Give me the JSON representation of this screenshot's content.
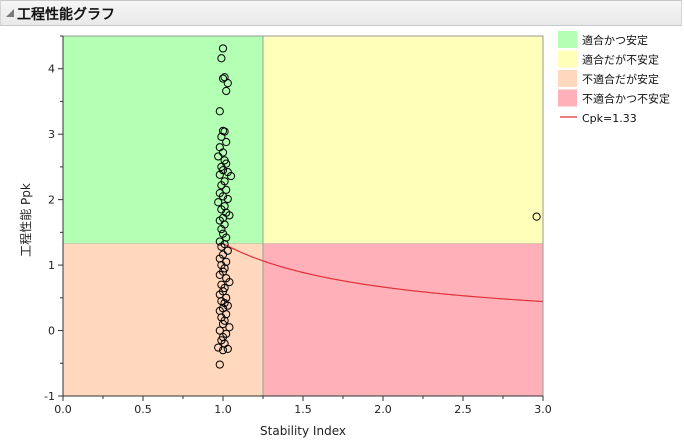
{
  "outline": {
    "title": "工程性能グラフ"
  },
  "chart_data": {
    "type": "scatter",
    "title": "工程性能グラフ",
    "xlabel": "Stability Index",
    "ylabel": "工程性能 Ppk",
    "xlim": [
      0,
      3.0
    ],
    "ylim": [
      -1,
      4.5
    ],
    "x_ticks": [
      "0.0",
      "0.5",
      "1.0",
      "1.5",
      "2.0",
      "2.5",
      "3.0"
    ],
    "y_ticks": [
      "-1",
      "0",
      "1",
      "2",
      "3",
      "4"
    ],
    "regions": [
      {
        "label": "適合かつ安定",
        "color": "#b3ffb3",
        "x": [
          0,
          1.25
        ],
        "y": [
          1.33,
          4.5
        ]
      },
      {
        "label": "適合だが不安定",
        "color": "#ffffb9",
        "x": [
          1.25,
          3.0
        ],
        "y": [
          1.33,
          4.5
        ]
      },
      {
        "label": "不適合だが安定",
        "color": "#ffd8bd",
        "x": [
          0,
          1.25
        ],
        "y": [
          -1,
          1.33
        ]
      },
      {
        "label": "不適合かつ不安定",
        "color": "#ffb0b8",
        "x": [
          1.25,
          3.0
        ],
        "y": [
          -1,
          1.33
        ]
      }
    ],
    "reference_curve": {
      "label": "Cpk=1.33",
      "color": "#e0303a",
      "x_start": 1.0,
      "x_end": 3.0,
      "formula": "1.33/x"
    },
    "series": [
      {
        "marker": "open-circle",
        "points": [
          [
            1.0,
            4.31
          ],
          [
            0.99,
            4.16
          ],
          [
            1.01,
            3.87
          ],
          [
            1.0,
            3.85
          ],
          [
            1.03,
            3.78
          ],
          [
            1.02,
            3.66
          ],
          [
            0.98,
            3.35
          ],
          [
            1.0,
            3.05
          ],
          [
            1.01,
            3.04
          ],
          [
            0.99,
            2.96
          ],
          [
            1.02,
            2.88
          ],
          [
            0.98,
            2.8
          ],
          [
            1.0,
            2.72
          ],
          [
            0.97,
            2.66
          ],
          [
            1.01,
            2.6
          ],
          [
            1.02,
            2.55
          ],
          [
            0.99,
            2.5
          ],
          [
            1.0,
            2.45
          ],
          [
            1.03,
            2.42
          ],
          [
            0.98,
            2.38
          ],
          [
            1.05,
            2.36
          ],
          [
            1.01,
            2.28
          ],
          [
            0.99,
            2.22
          ],
          [
            1.02,
            2.15
          ],
          [
            0.98,
            2.1
          ],
          [
            1.0,
            2.05
          ],
          [
            1.03,
            2.01
          ],
          [
            0.97,
            1.96
          ],
          [
            1.01,
            1.9
          ],
          [
            0.99,
            1.85
          ],
          [
            1.02,
            1.8
          ],
          [
            1.04,
            1.76
          ],
          [
            1.0,
            1.72
          ],
          [
            0.98,
            1.68
          ],
          [
            1.01,
            1.62
          ],
          [
            0.99,
            1.55
          ],
          [
            1.0,
            1.48
          ],
          [
            1.02,
            1.42
          ],
          [
            0.98,
            1.36
          ],
          [
            1.01,
            1.32
          ],
          [
            0.99,
            1.28
          ],
          [
            1.03,
            1.22
          ],
          [
            1.0,
            1.16
          ],
          [
            0.98,
            1.1
          ],
          [
            1.02,
            1.05
          ],
          [
            0.99,
            1.0
          ],
          [
            1.01,
            0.95
          ],
          [
            1.0,
            0.9
          ],
          [
            0.98,
            0.85
          ],
          [
            1.02,
            0.8
          ],
          [
            1.04,
            0.74
          ],
          [
            0.99,
            0.7
          ],
          [
            1.01,
            0.65
          ],
          [
            1.0,
            0.6
          ],
          [
            0.98,
            0.55
          ],
          [
            1.02,
            0.5
          ],
          [
            0.99,
            0.45
          ],
          [
            1.01,
            0.42
          ],
          [
            1.03,
            0.38
          ],
          [
            1.0,
            0.34
          ],
          [
            0.98,
            0.3
          ],
          [
            1.02,
            0.25
          ],
          [
            0.99,
            0.2
          ],
          [
            1.01,
            0.15
          ],
          [
            1.0,
            0.1
          ],
          [
            1.04,
            0.05
          ],
          [
            0.98,
            0.0
          ],
          [
            1.02,
            -0.05
          ],
          [
            1.0,
            -0.1
          ],
          [
            0.99,
            -0.15
          ],
          [
            1.01,
            -0.2
          ],
          [
            0.97,
            -0.26
          ],
          [
            1.0,
            -0.3
          ],
          [
            1.03,
            -0.28
          ],
          [
            0.98,
            -0.52
          ],
          [
            2.96,
            1.74
          ]
        ]
      }
    ],
    "legend": {
      "position": "right",
      "items": [
        {
          "label": "適合かつ安定",
          "color": "#b3ffb3",
          "kind": "swatch"
        },
        {
          "label": "適合だが不安定",
          "color": "#ffffb9",
          "kind": "swatch"
        },
        {
          "label": "不適合だが安定",
          "color": "#ffd8bd",
          "kind": "swatch"
        },
        {
          "label": "不適合かつ不安定",
          "color": "#ffb0b8",
          "kind": "swatch"
        },
        {
          "label": "Cpk=1.33",
          "color": "#e0303a",
          "kind": "line"
        }
      ]
    }
  }
}
